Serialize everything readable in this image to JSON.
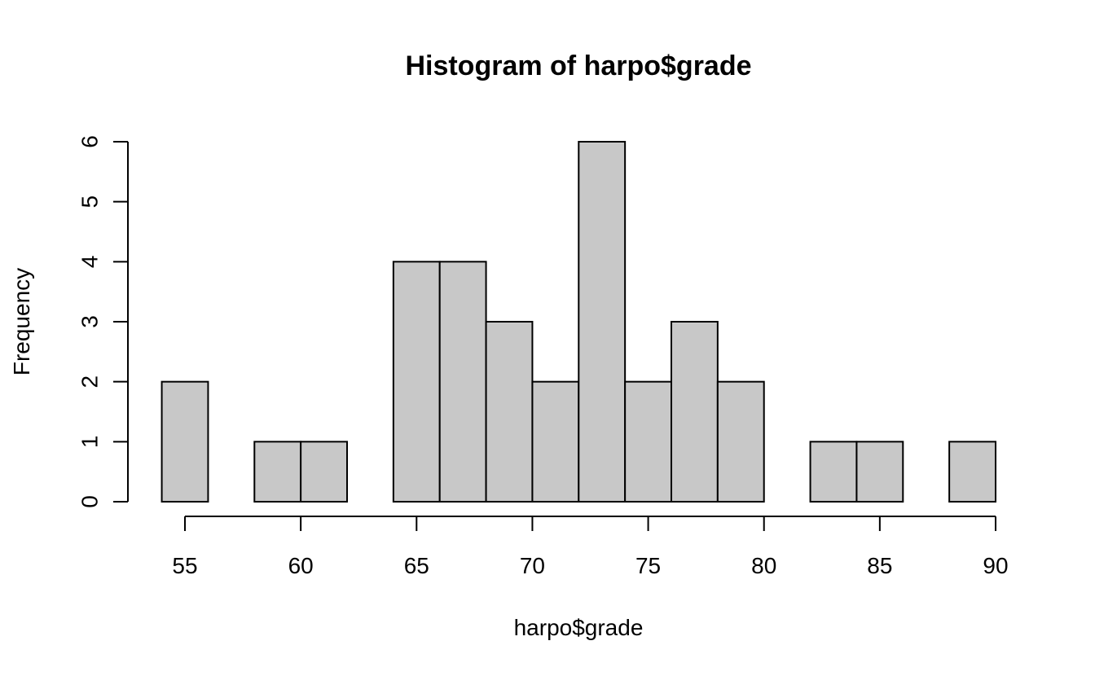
{
  "chart_data": {
    "type": "bar",
    "subtype": "histogram",
    "title": "Histogram of harpo$grade",
    "xlabel": "harpo$grade",
    "ylabel": "Frequency",
    "bins": [
      {
        "from": 54,
        "to": 56,
        "count": 2
      },
      {
        "from": 56,
        "to": 58,
        "count": 0
      },
      {
        "from": 58,
        "to": 60,
        "count": 1
      },
      {
        "from": 60,
        "to": 62,
        "count": 1
      },
      {
        "from": 62,
        "to": 64,
        "count": 0
      },
      {
        "from": 64,
        "to": 66,
        "count": 4
      },
      {
        "from": 66,
        "to": 68,
        "count": 4
      },
      {
        "from": 68,
        "to": 70,
        "count": 3
      },
      {
        "from": 70,
        "to": 72,
        "count": 2
      },
      {
        "from": 72,
        "to": 74,
        "count": 6
      },
      {
        "from": 74,
        "to": 76,
        "count": 2
      },
      {
        "from": 76,
        "to": 78,
        "count": 3
      },
      {
        "from": 78,
        "to": 80,
        "count": 2
      },
      {
        "from": 80,
        "to": 82,
        "count": 0
      },
      {
        "from": 82,
        "to": 84,
        "count": 1
      },
      {
        "from": 84,
        "to": 86,
        "count": 1
      },
      {
        "from": 86,
        "to": 88,
        "count": 0
      },
      {
        "from": 88,
        "to": 90,
        "count": 1
      }
    ],
    "xticks": [
      55,
      60,
      65,
      70,
      75,
      80,
      85,
      90
    ],
    "yticks": [
      0,
      1,
      2,
      3,
      4,
      5,
      6
    ],
    "xlim": [
      55,
      90
    ],
    "ylim": [
      0,
      6
    ],
    "grid": false,
    "bar_color": "#c8c8c8",
    "edge_color": "#000000"
  }
}
